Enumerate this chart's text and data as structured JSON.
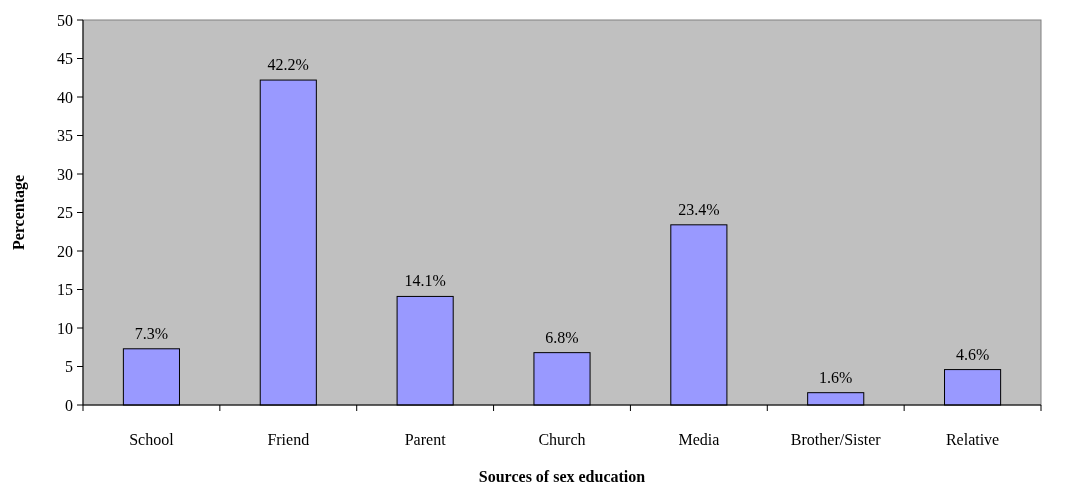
{
  "chart_data": {
    "type": "bar",
    "xlabel": "Sources of sex education",
    "ylabel": "Percentage",
    "categories": [
      "School",
      "Friend",
      "Parent",
      "Church",
      "Media",
      "Brother/Sister",
      "Relative"
    ],
    "values": [
      7.3,
      42.2,
      14.1,
      6.8,
      23.4,
      1.6,
      4.6
    ],
    "value_labels": [
      "7.3%",
      "42.2%",
      "14.1%",
      "6.8%",
      "23.4%",
      "1.6%",
      "4.6%"
    ],
    "color": "#9999ff",
    "ylim": [
      0,
      50
    ],
    "yticks": [
      0,
      5,
      10,
      15,
      20,
      25,
      30,
      35,
      40,
      45,
      50
    ],
    "grid": false
  }
}
